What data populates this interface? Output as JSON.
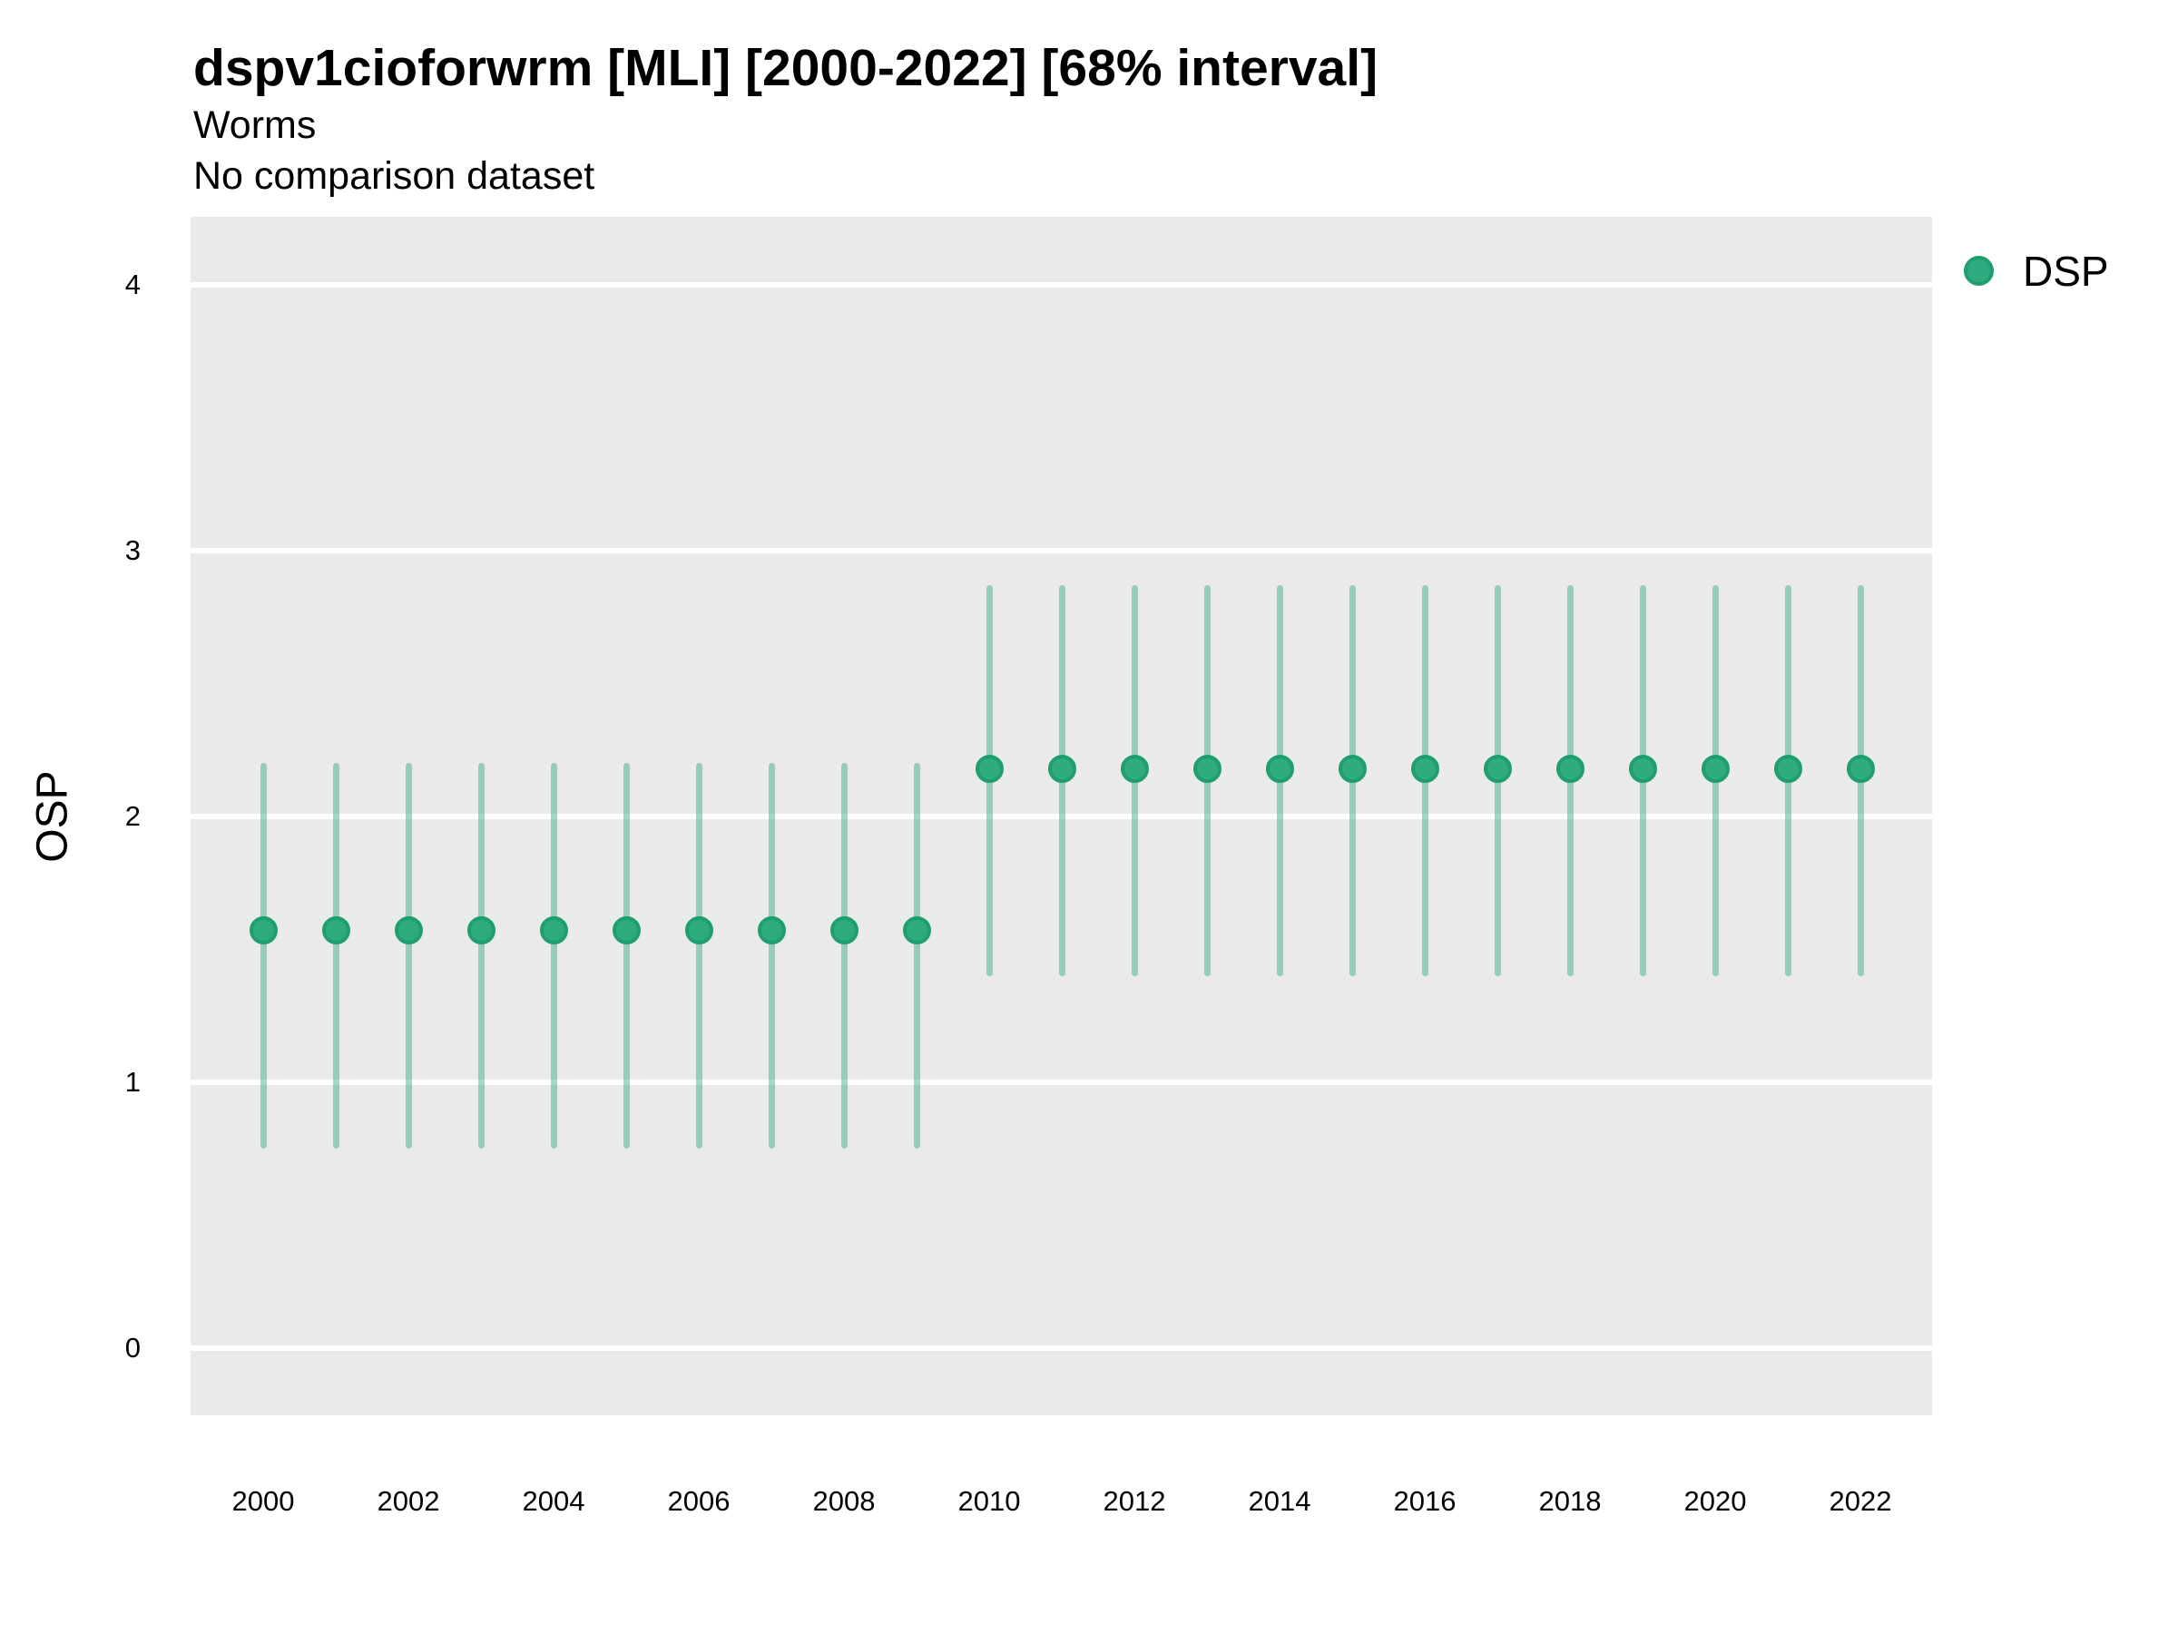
{
  "chart_data": {
    "type": "pointrange",
    "title": "dspv1cioforwrm [MLI] [2000-2022] [68% interval]",
    "subtitle": "Worms",
    "note": "No comparison dataset",
    "ylabel": "OSP",
    "xlabel": "",
    "interval": "68%",
    "grid": "horizontal major gridlines only",
    "panel_bg": "#EAEAEA",
    "gridline_color": "#FFFFFF",
    "xlim": [
      1999,
      2023
    ],
    "ylim": [
      -0.25,
      4.25
    ],
    "y_ticks": [
      0,
      1,
      2,
      3,
      4
    ],
    "x_ticks": [
      2000,
      2002,
      2004,
      2006,
      2008,
      2010,
      2012,
      2014,
      2016,
      2018,
      2020,
      2022
    ],
    "legend": {
      "position": "right",
      "entries": [
        {
          "label": "DSP",
          "color": "#2EAC80"
        }
      ]
    },
    "series": [
      {
        "name": "DSP",
        "point_color": "#2EAC80",
        "point_border_color": "#1F9E6E",
        "line_color": "rgba(44,172,126,0.45)",
        "points": [
          {
            "x": 2000,
            "y": 1.57,
            "lo": 0.75,
            "hi": 2.2
          },
          {
            "x": 2001,
            "y": 1.57,
            "lo": 0.75,
            "hi": 2.2
          },
          {
            "x": 2002,
            "y": 1.57,
            "lo": 0.75,
            "hi": 2.2
          },
          {
            "x": 2003,
            "y": 1.57,
            "lo": 0.75,
            "hi": 2.2
          },
          {
            "x": 2004,
            "y": 1.57,
            "lo": 0.75,
            "hi": 2.2
          },
          {
            "x": 2005,
            "y": 1.57,
            "lo": 0.75,
            "hi": 2.2
          },
          {
            "x": 2006,
            "y": 1.57,
            "lo": 0.75,
            "hi": 2.2
          },
          {
            "x": 2007,
            "y": 1.57,
            "lo": 0.75,
            "hi": 2.2
          },
          {
            "x": 2008,
            "y": 1.57,
            "lo": 0.75,
            "hi": 2.2
          },
          {
            "x": 2009,
            "y": 1.57,
            "lo": 0.75,
            "hi": 2.2
          },
          {
            "x": 2010,
            "y": 2.18,
            "lo": 1.4,
            "hi": 2.87
          },
          {
            "x": 2011,
            "y": 2.18,
            "lo": 1.4,
            "hi": 2.87
          },
          {
            "x": 2012,
            "y": 2.18,
            "lo": 1.4,
            "hi": 2.87
          },
          {
            "x": 2013,
            "y": 2.18,
            "lo": 1.4,
            "hi": 2.87
          },
          {
            "x": 2014,
            "y": 2.18,
            "lo": 1.4,
            "hi": 2.87
          },
          {
            "x": 2015,
            "y": 2.18,
            "lo": 1.4,
            "hi": 2.87
          },
          {
            "x": 2016,
            "y": 2.18,
            "lo": 1.4,
            "hi": 2.87
          },
          {
            "x": 2017,
            "y": 2.18,
            "lo": 1.4,
            "hi": 2.87
          },
          {
            "x": 2018,
            "y": 2.18,
            "lo": 1.4,
            "hi": 2.87
          },
          {
            "x": 2019,
            "y": 2.18,
            "lo": 1.4,
            "hi": 2.87
          },
          {
            "x": 2020,
            "y": 2.18,
            "lo": 1.4,
            "hi": 2.87
          },
          {
            "x": 2021,
            "y": 2.18,
            "lo": 1.4,
            "hi": 2.87
          },
          {
            "x": 2022,
            "y": 2.18,
            "lo": 1.4,
            "hi": 2.87
          }
        ]
      }
    ]
  }
}
